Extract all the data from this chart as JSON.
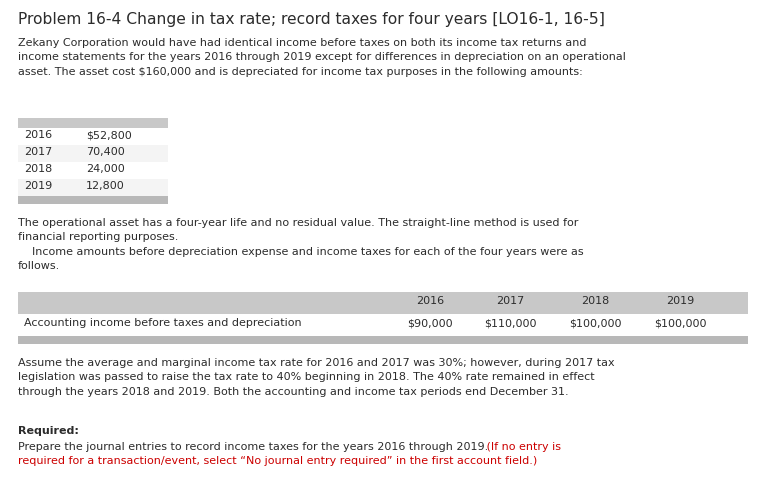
{
  "title": "Problem 16-4 Change in tax rate; record taxes for four years [LO16-1, 16-5]",
  "bg_color": "#ffffff",
  "text_color": "#2c2c2c",
  "red_color": "#cc0000",
  "para1": "Zekany Corporation would have had identical income before taxes on both its income tax returns and\nincome statements for the years 2016 through 2019 except for differences in depreciation on an operational\nasset. The asset cost $160,000 and is depreciated for income tax purposes in the following amounts:",
  "dep_years": [
    "2016",
    "2017",
    "2018",
    "2019"
  ],
  "dep_values": [
    "$52,800",
    "70,400",
    "24,000",
    "12,800"
  ],
  "para2": "The operational asset has a four-year life and no residual value. The straight-line method is used for\nfinancial reporting purposes.\n    Income amounts before depreciation expense and income taxes for each of the four years were as\nfollows.",
  "income_label": "Accounting income before taxes and depreciation",
  "income_years": [
    "2016",
    "2017",
    "2018",
    "2019"
  ],
  "income_values": [
    "$90,000",
    "$110,000",
    "$100,000",
    "$100,000"
  ],
  "para3": "Assume the average and marginal income tax rate for 2016 and 2017 was 30%; however, during 2017 tax\nlegislation was passed to raise the tax rate to 40% beginning in 2018. The 40% rate remained in effect\nthrough the years 2018 and 2019. Both the accounting and income tax periods end December 31.",
  "required_label": "Required:",
  "required_black": "Prepare the journal entries to record income taxes for the years 2016 through 2019.",
  "required_red_1": " (If no entry is",
  "required_red_2": "required for a transaction/event, select “No journal entry required” in the first account field.)",
  "table1_header_color": "#c8c8c8",
  "table1_footer_color": "#b8b8b8",
  "table2_header_color": "#c8c8c8",
  "table2_footer_color": "#b8b8b8"
}
